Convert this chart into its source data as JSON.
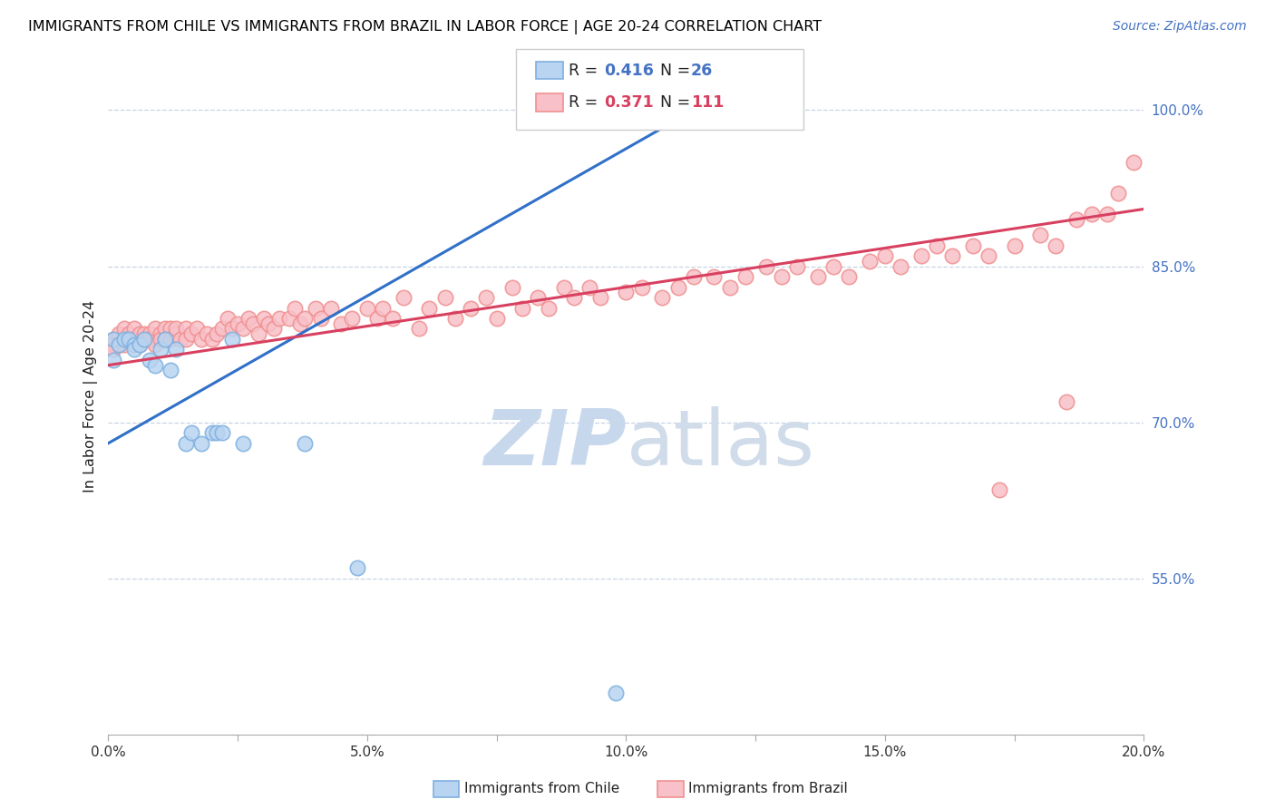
{
  "title": "IMMIGRANTS FROM CHILE VS IMMIGRANTS FROM BRAZIL IN LABOR FORCE | AGE 20-24 CORRELATION CHART",
  "source": "Source: ZipAtlas.com",
  "ylabel": "In Labor Force | Age 20-24",
  "xmin": 0.0,
  "xmax": 0.2,
  "ymin": 0.4,
  "ymax": 1.05,
  "yticks": [
    0.55,
    0.7,
    0.85,
    1.0
  ],
  "ytick_labels": [
    "55.0%",
    "70.0%",
    "85.0%",
    "100.0%"
  ],
  "xtick_labels": [
    "0.0%",
    "",
    "5.0%",
    "",
    "10.0%",
    "",
    "15.0%",
    "",
    "20.0%"
  ],
  "xticks": [
    0.0,
    0.025,
    0.05,
    0.075,
    0.1,
    0.125,
    0.15,
    0.175,
    0.2
  ],
  "chile_edge_color": "#7fb0e0",
  "chile_face_color": "#b8d4f0",
  "brazil_edge_color": "#f09090",
  "brazil_face_color": "#f8c0c8",
  "trend_chile_color": "#3070c8",
  "trend_brazil_color": "#d84060",
  "grid_color": "#c8d4e4",
  "watermark_zip_color": "#c8d8ec",
  "watermark_atlas_color": "#d0dcea",
  "chile_x": [
    0.001,
    0.001,
    0.002,
    0.003,
    0.004,
    0.005,
    0.005,
    0.006,
    0.007,
    0.008,
    0.009,
    0.01,
    0.011,
    0.012,
    0.013,
    0.015,
    0.016,
    0.018,
    0.02,
    0.021,
    0.022,
    0.024,
    0.026,
    0.038,
    0.048,
    0.098
  ],
  "chile_y": [
    0.78,
    0.76,
    0.775,
    0.78,
    0.78,
    0.775,
    0.77,
    0.775,
    0.78,
    0.76,
    0.755,
    0.77,
    0.78,
    0.75,
    0.77,
    0.68,
    0.69,
    0.68,
    0.69,
    0.69,
    0.69,
    0.78,
    0.68,
    0.68,
    0.56,
    0.44
  ],
  "brazil_x": [
    0.001,
    0.001,
    0.001,
    0.002,
    0.002,
    0.003,
    0.003,
    0.003,
    0.004,
    0.004,
    0.005,
    0.005,
    0.005,
    0.006,
    0.006,
    0.007,
    0.007,
    0.008,
    0.008,
    0.009,
    0.009,
    0.01,
    0.01,
    0.011,
    0.011,
    0.012,
    0.012,
    0.013,
    0.013,
    0.014,
    0.015,
    0.015,
    0.016,
    0.017,
    0.018,
    0.019,
    0.02,
    0.021,
    0.022,
    0.023,
    0.024,
    0.025,
    0.026,
    0.027,
    0.028,
    0.029,
    0.03,
    0.031,
    0.032,
    0.033,
    0.035,
    0.036,
    0.037,
    0.038,
    0.04,
    0.041,
    0.043,
    0.045,
    0.047,
    0.05,
    0.052,
    0.053,
    0.055,
    0.057,
    0.06,
    0.062,
    0.065,
    0.067,
    0.07,
    0.073,
    0.075,
    0.078,
    0.08,
    0.083,
    0.085,
    0.088,
    0.09,
    0.093,
    0.095,
    0.1,
    0.103,
    0.107,
    0.11,
    0.113,
    0.117,
    0.12,
    0.123,
    0.127,
    0.13,
    0.133,
    0.137,
    0.14,
    0.143,
    0.147,
    0.15,
    0.153,
    0.157,
    0.16,
    0.163,
    0.167,
    0.17,
    0.175,
    0.18,
    0.183,
    0.187,
    0.19,
    0.193,
    0.195,
    0.198,
    0.185,
    0.172
  ],
  "brazil_y": [
    0.78,
    0.775,
    0.77,
    0.785,
    0.775,
    0.78,
    0.79,
    0.775,
    0.785,
    0.78,
    0.79,
    0.78,
    0.775,
    0.785,
    0.775,
    0.785,
    0.78,
    0.785,
    0.78,
    0.79,
    0.775,
    0.785,
    0.78,
    0.79,
    0.78,
    0.79,
    0.78,
    0.785,
    0.79,
    0.78,
    0.79,
    0.78,
    0.785,
    0.79,
    0.78,
    0.785,
    0.78,
    0.785,
    0.79,
    0.8,
    0.79,
    0.795,
    0.79,
    0.8,
    0.795,
    0.785,
    0.8,
    0.795,
    0.79,
    0.8,
    0.8,
    0.81,
    0.795,
    0.8,
    0.81,
    0.8,
    0.81,
    0.795,
    0.8,
    0.81,
    0.8,
    0.81,
    0.8,
    0.82,
    0.79,
    0.81,
    0.82,
    0.8,
    0.81,
    0.82,
    0.8,
    0.83,
    0.81,
    0.82,
    0.81,
    0.83,
    0.82,
    0.83,
    0.82,
    0.825,
    0.83,
    0.82,
    0.83,
    0.84,
    0.84,
    0.83,
    0.84,
    0.85,
    0.84,
    0.85,
    0.84,
    0.85,
    0.84,
    0.855,
    0.86,
    0.85,
    0.86,
    0.87,
    0.86,
    0.87,
    0.86,
    0.87,
    0.88,
    0.87,
    0.895,
    0.9,
    0.9,
    0.92,
    0.95,
    0.72,
    0.635
  ]
}
